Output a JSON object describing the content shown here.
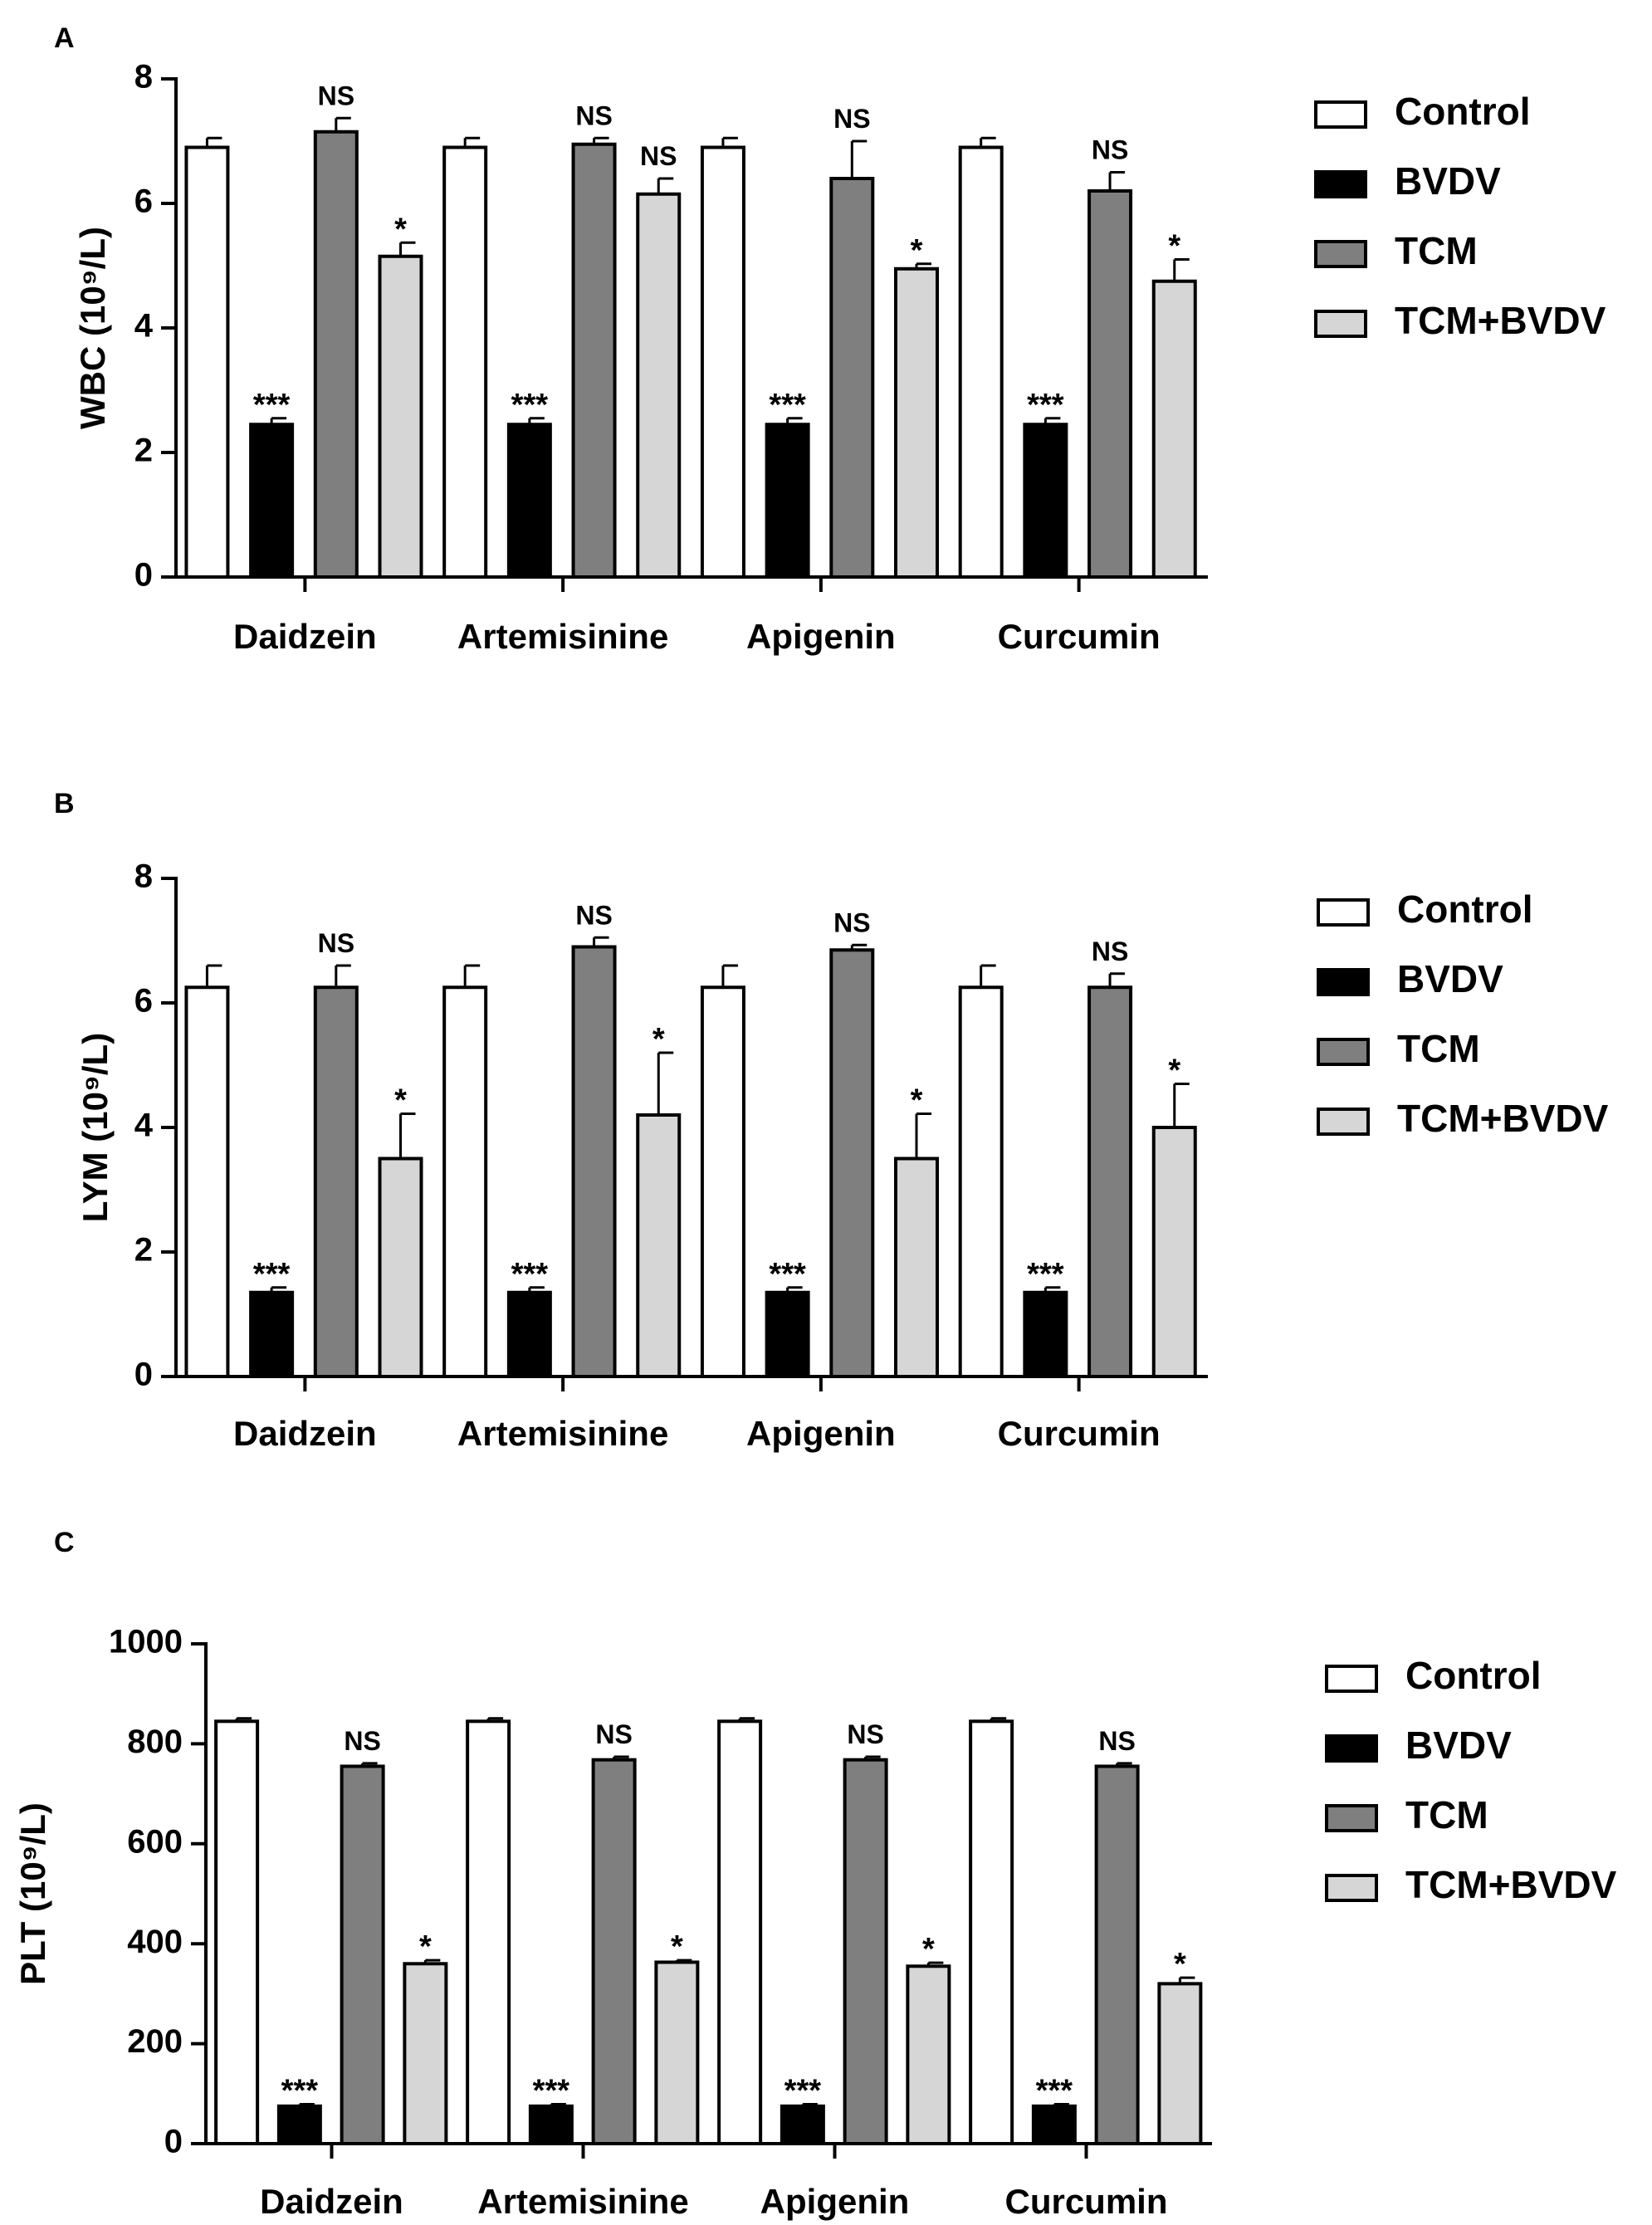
{
  "colors": {
    "Control": "#ffffff",
    "BVDV": "#000000",
    "TCM": "#7f7f7f",
    "TCM+BVDV": "#d6d6d6",
    "axis": "#000000"
  },
  "chart_data": [
    {
      "type": "bar",
      "panel_label": "A",
      "ylabel": "WBC (10⁹/L)",
      "ylim": [
        0,
        8
      ],
      "yticks": [
        0,
        2,
        4,
        6,
        8
      ],
      "grid": false,
      "legend_position": "right",
      "categories": [
        "Daidzein",
        "Artemisinine",
        "Apigenin",
        "Curcumin"
      ],
      "series": [
        {
          "name": "Control",
          "values": [
            6.9,
            6.9,
            6.9,
            6.9
          ],
          "errors": [
            0.15,
            0.15,
            0.15,
            0.15
          ],
          "annotations": [
            "",
            "",
            "",
            ""
          ]
        },
        {
          "name": "BVDV",
          "values": [
            2.45,
            2.45,
            2.45,
            2.45
          ],
          "errors": [
            0.1,
            0.1,
            0.1,
            0.1
          ],
          "annotations": [
            "***",
            "***",
            "***",
            "***"
          ]
        },
        {
          "name": "TCM",
          "values": [
            7.15,
            6.95,
            6.4,
            6.2
          ],
          "errors": [
            0.22,
            0.1,
            0.6,
            0.3
          ],
          "annotations": [
            "NS",
            "NS",
            "NS",
            "NS"
          ]
        },
        {
          "name": "TCM+BVDV",
          "values": [
            5.15,
            6.15,
            4.95,
            4.75
          ],
          "errors": [
            0.22,
            0.25,
            0.08,
            0.35
          ],
          "annotations": [
            "*",
            "NS",
            "*",
            "*"
          ]
        }
      ]
    },
    {
      "type": "bar",
      "panel_label": "B",
      "ylabel": "LYM (10⁹/L)",
      "ylim": [
        0,
        8
      ],
      "yticks": [
        0,
        2,
        4,
        6,
        8
      ],
      "grid": false,
      "legend_position": "right",
      "categories": [
        "Daidzein",
        "Artemisinine",
        "Apigenin",
        "Curcumin"
      ],
      "series": [
        {
          "name": "Control",
          "values": [
            6.25,
            6.25,
            6.25,
            6.25
          ],
          "errors": [
            0.35,
            0.35,
            0.35,
            0.35
          ],
          "annotations": [
            "",
            "",
            "",
            ""
          ]
        },
        {
          "name": "BVDV",
          "values": [
            1.35,
            1.35,
            1.35,
            1.35
          ],
          "errors": [
            0.08,
            0.08,
            0.08,
            0.08
          ],
          "annotations": [
            "***",
            "***",
            "***",
            "***"
          ]
        },
        {
          "name": "TCM",
          "values": [
            6.25,
            6.9,
            6.85,
            6.25
          ],
          "errors": [
            0.35,
            0.15,
            0.08,
            0.22
          ],
          "annotations": [
            "NS",
            "NS",
            "NS",
            "NS"
          ]
        },
        {
          "name": "TCM+BVDV",
          "values": [
            3.5,
            4.2,
            3.5,
            4.0
          ],
          "errors": [
            0.72,
            1.0,
            0.72,
            0.7
          ],
          "annotations": [
            "*",
            "*",
            "*",
            "*"
          ]
        }
      ]
    },
    {
      "type": "bar",
      "panel_label": "C",
      "ylabel": "PLT (10⁹/L)",
      "ylim": [
        0,
        1000
      ],
      "yticks": [
        0,
        200,
        400,
        600,
        800,
        1000
      ],
      "grid": false,
      "legend_position": "right",
      "categories": [
        "Daidzein",
        "Artemisinine",
        "Apigenin",
        "Curcumin"
      ],
      "series": [
        {
          "name": "Control",
          "values": [
            845,
            845,
            845,
            845
          ],
          "errors": [
            6,
            6,
            6,
            6
          ],
          "annotations": [
            "",
            "",
            "",
            ""
          ]
        },
        {
          "name": "BVDV",
          "values": [
            75,
            75,
            75,
            75
          ],
          "errors": [
            4,
            4,
            4,
            4
          ],
          "annotations": [
            "***",
            "***",
            "***",
            "***"
          ]
        },
        {
          "name": "TCM",
          "values": [
            755,
            768,
            768,
            755
          ],
          "errors": [
            6,
            6,
            6,
            6
          ],
          "annotations": [
            "NS",
            "NS",
            "NS",
            "NS"
          ]
        },
        {
          "name": "TCM+BVDV",
          "values": [
            360,
            363,
            355,
            320
          ],
          "errors": [
            7,
            4,
            7,
            12
          ],
          "annotations": [
            "*",
            "*",
            "*",
            "*"
          ]
        }
      ]
    }
  ]
}
